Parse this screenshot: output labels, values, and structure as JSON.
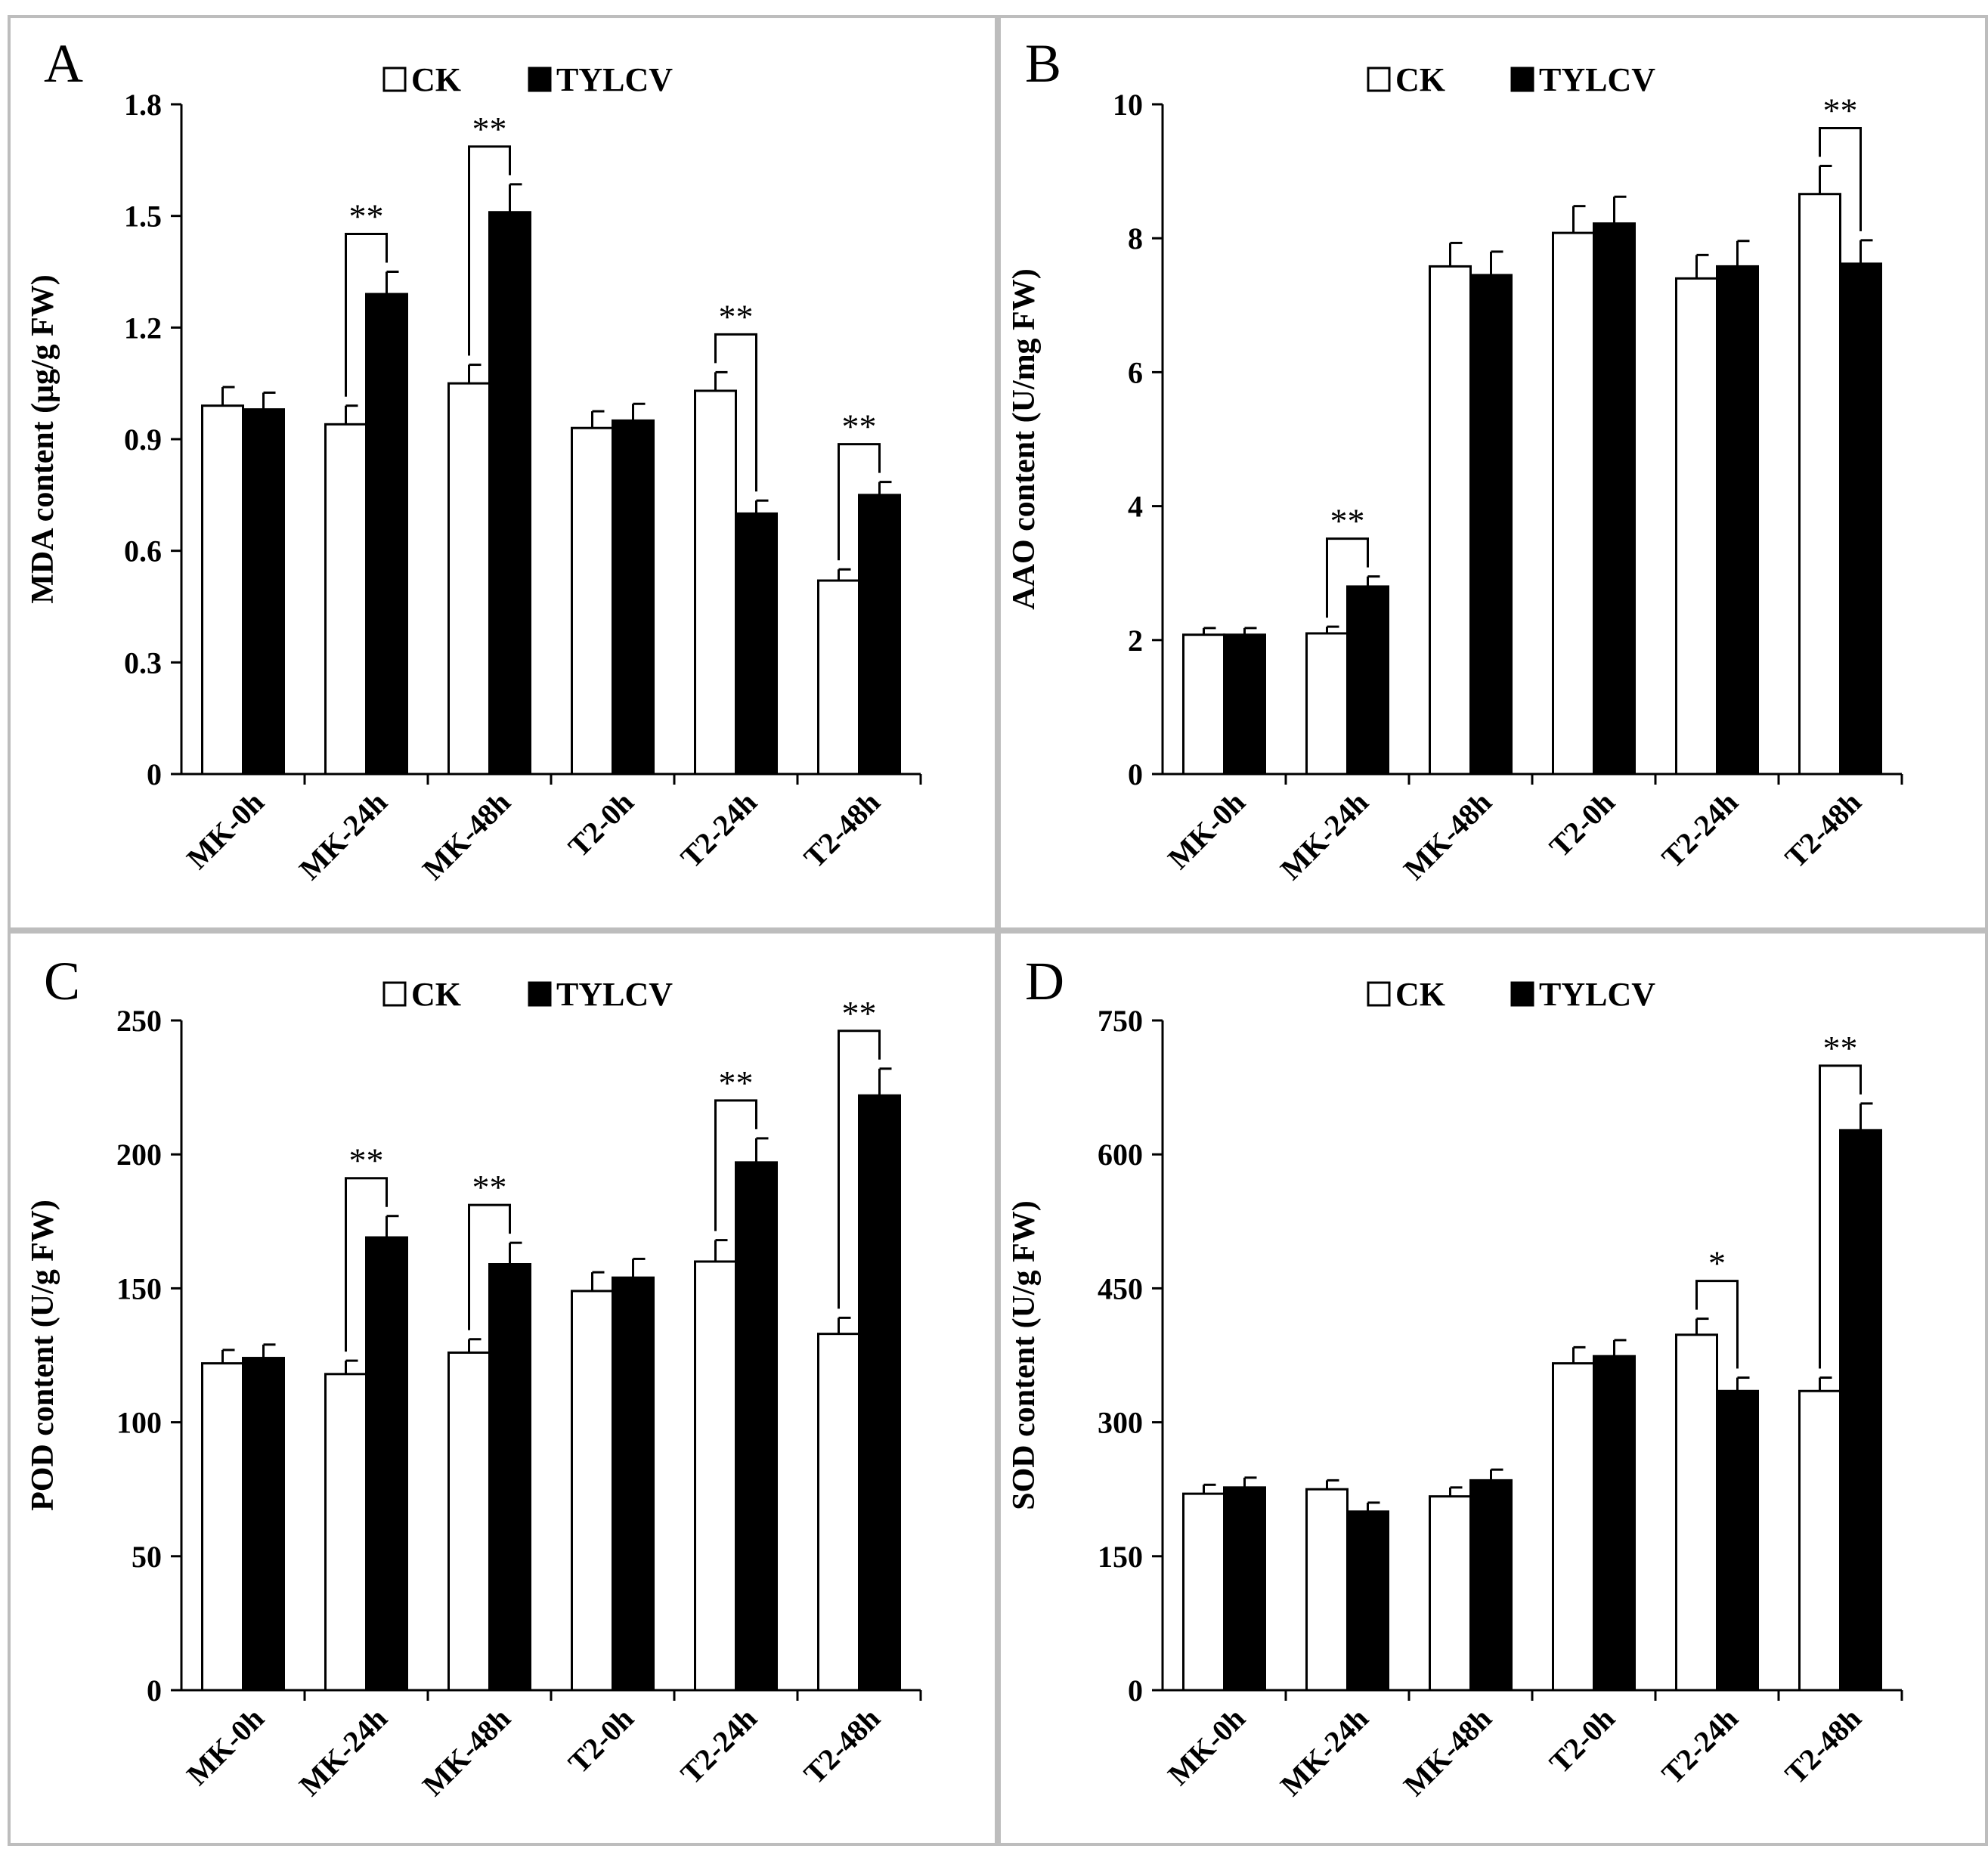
{
  "legend": {
    "ck_label": "CK",
    "tylcv_label": "TYLCV"
  },
  "colors": {
    "ck_fill": "#ffffff",
    "tylcv_fill": "#000000",
    "axis": "#000000",
    "frame": "#bdbdbd"
  },
  "chart_data": [
    {
      "type": "bar",
      "panel_label": "A",
      "ylabel": "MDA content (μg/g FW)",
      "ylim": [
        0,
        1.8
      ],
      "yticks": [
        "0",
        "0.3",
        "0.6",
        "0.9",
        "1.2",
        "1.5",
        "1.8"
      ],
      "categories": [
        "MK-0h",
        "MK-24h",
        "MK-48h",
        "T2-0h",
        "T2-24h",
        "T2-48h"
      ],
      "legend_position": "top-center",
      "grid": false,
      "series": [
        {
          "name": "CK",
          "values": [
            0.99,
            0.94,
            1.05,
            0.93,
            1.03,
            0.52
          ],
          "errors": [
            0.05,
            0.05,
            0.05,
            0.045,
            0.05,
            0.03
          ]
        },
        {
          "name": "TYLCV",
          "values": [
            0.98,
            1.29,
            1.51,
            0.95,
            0.7,
            0.75
          ],
          "errors": [
            0.045,
            0.06,
            0.075,
            0.045,
            0.035,
            0.035
          ]
        }
      ],
      "significance": [
        {
          "category": "MK-24h",
          "label": "**"
        },
        {
          "category": "MK-48h",
          "label": "**"
        },
        {
          "category": "T2-24h",
          "label": "**"
        },
        {
          "category": "T2-48h",
          "label": "**"
        }
      ]
    },
    {
      "type": "bar",
      "panel_label": "B",
      "ylabel": "AAO content (U/mg FW)",
      "ylim": [
        0,
        10
      ],
      "yticks": [
        "0",
        "2",
        "4",
        "6",
        "8",
        "10"
      ],
      "categories": [
        "MK-0h",
        "MK-24h",
        "MK-48h",
        "T2-0h",
        "T2-24h",
        "T2-48h"
      ],
      "legend_position": "top-center",
      "grid": false,
      "series": [
        {
          "name": "CK",
          "values": [
            2.08,
            2.1,
            7.58,
            8.08,
            7.4,
            8.66
          ],
          "errors": [
            0.1,
            0.1,
            0.35,
            0.4,
            0.35,
            0.42
          ]
        },
        {
          "name": "TYLCV",
          "values": [
            2.08,
            2.8,
            7.45,
            8.22,
            7.58,
            7.62
          ],
          "errors": [
            0.1,
            0.15,
            0.35,
            0.4,
            0.38,
            0.35
          ]
        }
      ],
      "significance": [
        {
          "category": "MK-24h",
          "label": "**"
        },
        {
          "category": "T2-48h",
          "label": "**"
        }
      ]
    },
    {
      "type": "bar",
      "panel_label": "C",
      "ylabel": "POD content (U/g FW)",
      "ylim": [
        0,
        250
      ],
      "yticks": [
        "0",
        "50",
        "100",
        "150",
        "200",
        "250"
      ],
      "categories": [
        "MK-0h",
        "MK-24h",
        "MK-48h",
        "T2-0h",
        "T2-24h",
        "T2-48h"
      ],
      "legend_position": "top-center",
      "grid": false,
      "series": [
        {
          "name": "CK",
          "values": [
            122,
            118,
            126,
            149,
            160,
            133
          ],
          "errors": [
            5,
            5,
            5,
            7,
            8,
            6
          ]
        },
        {
          "name": "TYLCV",
          "values": [
            124,
            169,
            159,
            154,
            197,
            222
          ],
          "errors": [
            5,
            8,
            8,
            7,
            9,
            10
          ]
        }
      ],
      "significance": [
        {
          "category": "MK-24h",
          "label": "**"
        },
        {
          "category": "MK-48h",
          "label": "**"
        },
        {
          "category": "T2-24h",
          "label": "**"
        },
        {
          "category": "T2-48h",
          "label": "**"
        }
      ]
    },
    {
      "type": "bar",
      "panel_label": "D",
      "ylabel": "SOD content (U/g FW)",
      "ylim": [
        0,
        750
      ],
      "yticks": [
        "0",
        "150",
        "300",
        "450",
        "600",
        "750"
      ],
      "categories": [
        "MK-0h",
        "MK-24h",
        "MK-48h",
        "T2-0h",
        "T2-24h",
        "T2-48h"
      ],
      "legend_position": "top-center",
      "grid": false,
      "series": [
        {
          "name": "CK",
          "values": [
            220,
            225,
            217,
            366,
            398,
            335
          ],
          "errors": [
            10,
            10,
            10,
            18,
            18,
            15
          ]
        },
        {
          "name": "TYLCV",
          "values": [
            227,
            200,
            235,
            374,
            335,
            627
          ],
          "errors": [
            11,
            10,
            12,
            18,
            15,
            30
          ]
        }
      ],
      "significance": [
        {
          "category": "T2-24h",
          "label": "*"
        },
        {
          "category": "T2-48h",
          "label": "**"
        }
      ]
    }
  ]
}
